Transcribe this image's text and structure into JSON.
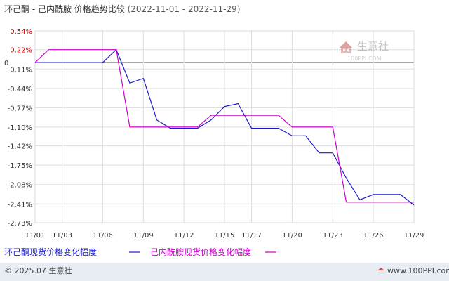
{
  "chart_data": {
    "type": "line",
    "title": "环己酮 - 己内酰胺 价格趋势比较",
    "date_range": "(2022-11-01 - 2022-11-29)",
    "x": [
      "2022-11-01",
      "2022-11-02",
      "2022-11-03",
      "2022-11-04",
      "2022-11-05",
      "2022-11-06",
      "2022-11-07",
      "2022-11-08",
      "2022-11-09",
      "2022-11-10",
      "2022-11-11",
      "2022-11-12",
      "2022-11-13",
      "2022-11-14",
      "2022-11-15",
      "2022-11-16",
      "2022-11-17",
      "2022-11-18",
      "2022-11-19",
      "2022-11-20",
      "2022-11-21",
      "2022-11-22",
      "2022-11-23",
      "2022-11-24",
      "2022-11-25",
      "2022-11-26",
      "2022-11-27",
      "2022-11-28",
      "2022-11-29"
    ],
    "x_tick_labels": [
      "11/01",
      "11/03",
      "11/06",
      "11/09",
      "11/12",
      "11/15",
      "11/17",
      "11/20",
      "11/23",
      "11/26",
      "11/29"
    ],
    "x_tick_dates": [
      "2022-11-01",
      "2022-11-03",
      "2022-11-06",
      "2022-11-09",
      "2022-11-12",
      "2022-11-15",
      "2022-11-17",
      "2022-11-20",
      "2022-11-23",
      "2022-11-26",
      "2022-11-29"
    ],
    "y_tick_labels": [
      "0.54%",
      "0.22%",
      "0",
      "-0.11%",
      "-0.44%",
      "-0.77%",
      "-1.10%",
      "-1.42%",
      "-1.75%",
      "-2.08%",
      "-2.41%",
      "-2.73%"
    ],
    "y_ticks": [
      0.54,
      0.22,
      0,
      -0.11,
      -0.44,
      -0.77,
      -1.1,
      -1.42,
      -1.75,
      -2.08,
      -2.41,
      -2.73
    ],
    "ylim": [
      -2.73,
      0.54
    ],
    "grid": true,
    "legend_position": "bottom-left",
    "series": [
      {
        "name": "环己酮现货价格变化幅度",
        "color": "#1a1acc",
        "values": [
          0,
          0,
          0,
          0,
          0,
          0,
          0.22,
          -0.35,
          -0.27,
          -0.98,
          -1.12,
          -1.12,
          -1.12,
          -0.98,
          -0.75,
          -0.7,
          -1.12,
          -1.12,
          -1.12,
          -1.25,
          -1.25,
          -1.54,
          -1.54,
          -1.97,
          -2.34,
          -2.25,
          -2.25,
          -2.25,
          -2.43
        ]
      },
      {
        "name": "己内酰胺现货价格变化幅度",
        "color": "#cc00cc",
        "values": [
          0,
          0.22,
          0.22,
          0.22,
          0.22,
          0.22,
          0.22,
          -1.1,
          -1.1,
          -1.1,
          -1.1,
          -1.1,
          -1.1,
          -0.9,
          -0.9,
          -0.9,
          -0.9,
          -0.9,
          -0.9,
          -1.1,
          -1.1,
          -1.1,
          -1.1,
          -2.38,
          -2.38,
          -2.38,
          -2.38,
          -2.38,
          -2.38
        ]
      }
    ]
  },
  "watermark": {
    "text": "生意社",
    "sub": "100PPI.COM"
  },
  "footer": {
    "copyright": "© 2025.07 生意社",
    "site": "www.100PPI.com"
  },
  "colors": {
    "zero_line": "#555555",
    "grid": "#dddddd",
    "axis": "#999999",
    "footer_bg": "#e8edf4",
    "accent": "#cc0000"
  }
}
